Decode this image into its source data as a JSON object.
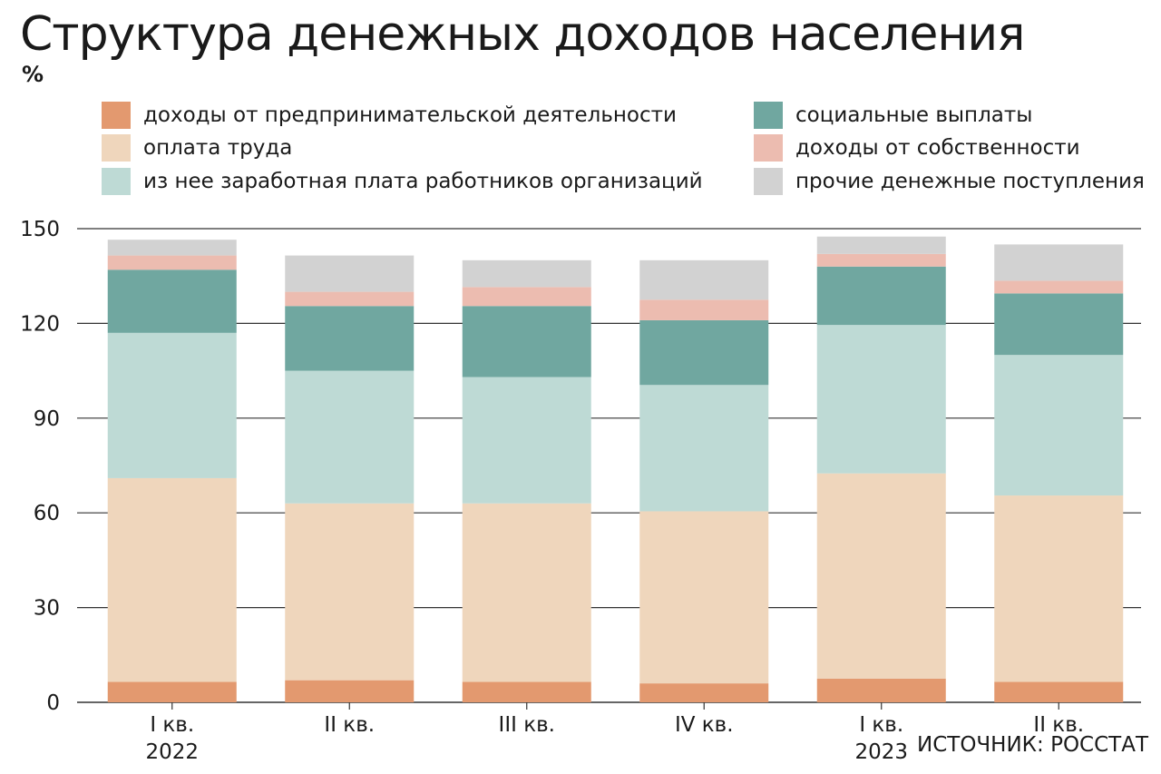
{
  "title": "Структура денежных доходов населения",
  "unit": "%",
  "source": "ИСТОЧНИК: РОССТАТ",
  "legend": [
    {
      "label": "доходы от предпринимательской деятельности",
      "color": "#e3996f"
    },
    {
      "label": "оплата труда",
      "color": "#efd6bc"
    },
    {
      "label": "из нее заработная плата работников организаций",
      "color": "#bedad5"
    },
    {
      "label": "социальные выплаты",
      "color": "#70a7a0"
    },
    {
      "label": "доходы от собственности",
      "color": "#ecbcb0"
    },
    {
      "label": "прочие денежные поступления",
      "color": "#d2d2d2"
    }
  ],
  "chart_data": {
    "type": "bar",
    "stacked": true,
    "categories": [
      "I кв.",
      "II кв.",
      "III кв.",
      "IV кв.",
      "I кв.",
      "II кв."
    ],
    "year_labels": [
      "2022",
      "",
      "",
      "",
      "2023",
      ""
    ],
    "ylim": [
      0,
      150
    ],
    "yticks": [
      0,
      30,
      60,
      90,
      120,
      150
    ],
    "grid": true,
    "legend_position": "top",
    "series": [
      {
        "name": "доходы от предпринимательской деятельности",
        "color": "#e3996f",
        "values": [
          6.5,
          7,
          6.5,
          6,
          7.5,
          6.5
        ]
      },
      {
        "name": "оплата труда",
        "color": "#efd6bc",
        "values": [
          64.5,
          56,
          56.5,
          54.5,
          65,
          59
        ]
      },
      {
        "name": "из нее заработная плата работников организаций",
        "color": "#bedad5",
        "values": [
          46,
          42,
          40,
          40,
          47,
          44.5
        ]
      },
      {
        "name": "социальные выплаты",
        "color": "#70a7a0",
        "values": [
          20,
          20.5,
          22.5,
          20.5,
          18.5,
          19.5
        ]
      },
      {
        "name": "доходы от собственности",
        "color": "#ecbcb0",
        "values": [
          4.5,
          4.5,
          6,
          6.5,
          4,
          4
        ]
      },
      {
        "name": "прочие денежные поступления",
        "color": "#d2d2d2",
        "values": [
          5,
          11.5,
          8.5,
          12.5,
          5.5,
          11.5
        ]
      }
    ]
  }
}
